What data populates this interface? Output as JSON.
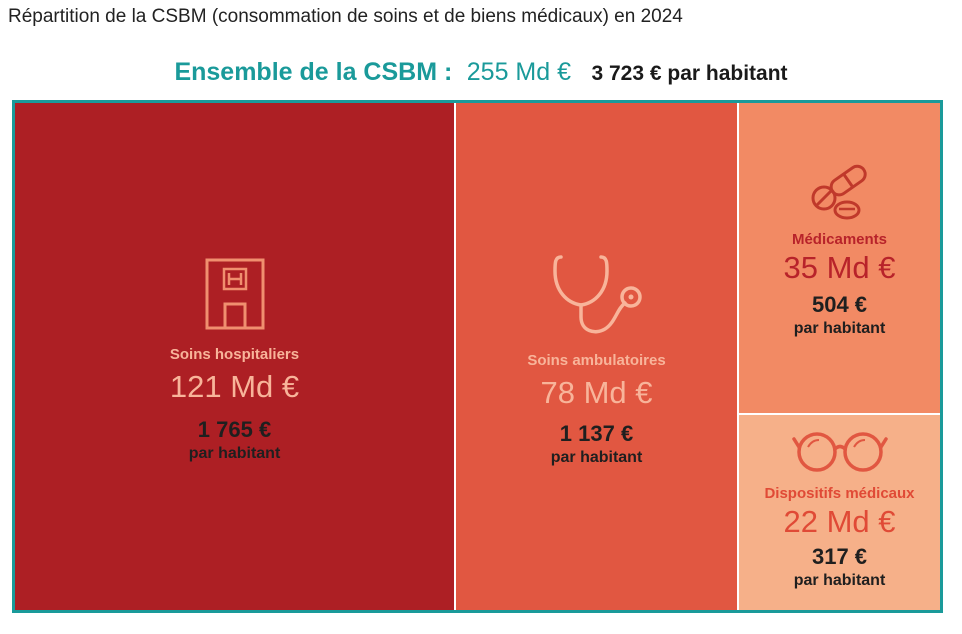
{
  "title": "Répartition de la CSBM (consommation de soins et de biens médicaux) en 2024",
  "total": {
    "label": "Ensemble de la CSBM :",
    "value": "255 Md €",
    "per_capita": "3 723 € par habitant"
  },
  "colors": {
    "frame": "#1a9a9a",
    "hospitaliers": "#ad1f24",
    "ambulatoires": "#e15741",
    "medicaments": "#f28a64",
    "dispositifs": "#f6b089",
    "light_text": "#f8b49a",
    "dark_text": "#b8232a"
  },
  "chart_data": {
    "type": "treemap",
    "title": "Répartition de la CSBM (consommation de soins et de biens médicaux) en 2024",
    "unit": "Md €",
    "total": 255,
    "total_per_capita_eur": 3723,
    "items": [
      {
        "name": "Soins hospitaliers",
        "value": 121,
        "value_label": "121 Md €",
        "per_capita": 1765,
        "per_capita_label": "1 765 €",
        "per_capita_sub": "par habitant",
        "icon": "hospital-icon"
      },
      {
        "name": "Soins ambulatoires",
        "value": 78,
        "value_label": "78 Md €",
        "per_capita": 1137,
        "per_capita_label": "1 137 €",
        "per_capita_sub": "par habitant",
        "icon": "stethoscope-icon"
      },
      {
        "name": "Médicaments",
        "value": 35,
        "value_label": "35 Md €",
        "per_capita": 504,
        "per_capita_label": "504 €",
        "per_capita_sub": "par habitant",
        "icon": "pills-icon"
      },
      {
        "name": "Dispositifs médicaux",
        "value": 22,
        "value_label": "22 Md €",
        "per_capita": 317,
        "per_capita_label": "317 €",
        "per_capita_sub": "par habitant",
        "icon": "glasses-icon"
      }
    ]
  }
}
